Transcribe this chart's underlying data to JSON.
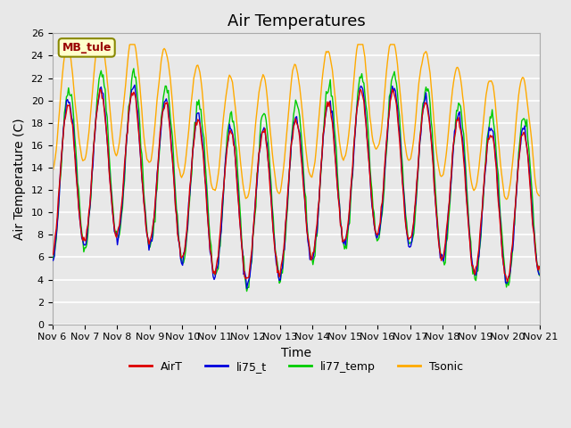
{
  "title": "Air Temperatures",
  "xlabel": "Time",
  "ylabel": "Air Temperature (C)",
  "ylim": [
    0,
    26
  ],
  "xlim": [
    6,
    21
  ],
  "background_color": "#e8e8e8",
  "plot_bg_color": "#e8e8e8",
  "grid_color": "#ffffff",
  "annotation_text": "MB_tule",
  "annotation_bg": "#ffffcc",
  "annotation_fg": "#990000",
  "annotation_edge": "#888800",
  "legend_labels": [
    "AirT",
    "li75_t",
    "li77_temp",
    "Tsonic"
  ],
  "line_colors": [
    "#dd0000",
    "#0000dd",
    "#00cc00",
    "#ffaa00"
  ],
  "line_width": 1.0,
  "title_fontsize": 13,
  "tick_fontsize": 8,
  "label_fontsize": 10,
  "yticks": [
    0,
    2,
    4,
    6,
    8,
    10,
    12,
    14,
    16,
    18,
    20,
    22,
    24,
    26
  ],
  "n_points": 480
}
